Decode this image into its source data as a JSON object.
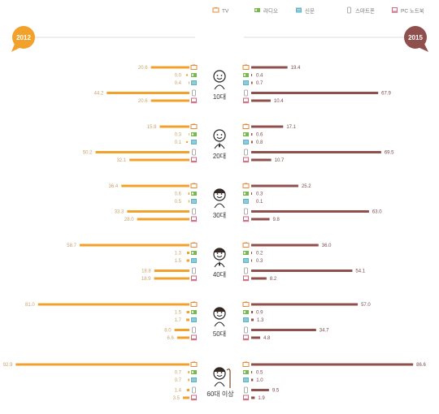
{
  "colors": {
    "left_bar": "#f2a22b",
    "right_bar": "#8f4f4c",
    "tv": "#e58a3a",
    "radio": "#79b84f",
    "newspaper": "#5db4c8",
    "smartphone": "#d6a73c",
    "pc": "#c95b72"
  },
  "legend": [
    {
      "label": "TV",
      "icon": "tv-icon",
      "color": "#e58a3a"
    },
    {
      "label": "라디오",
      "icon": "radio-icon",
      "color": "#79b84f"
    },
    {
      "label": "신문",
      "icon": "newspaper-icon",
      "color": "#5db4c8"
    },
    {
      "label": "스마트폰",
      "icon": "smartphone-icon",
      "color": "#d6a73c"
    },
    {
      "label": "PC 노트북",
      "icon": "pc-icon",
      "color": "#c95b72"
    }
  ],
  "chart_data": {
    "type": "bar",
    "left_label": "2012",
    "right_label": "2015",
    "media": [
      "TV",
      "라디오",
      "신문",
      "스마트폰",
      "PC 노트북"
    ],
    "groups": [
      {
        "age": "10대",
        "left": [
          20.6,
          0.0,
          0.4,
          44.2,
          20.6
        ],
        "right": [
          19.4,
          0.4,
          0.7,
          67.9,
          10.4
        ]
      },
      {
        "age": "20대",
        "left": [
          15.9,
          0.3,
          0.1,
          50.2,
          32.1
        ],
        "right": [
          17.1,
          0.6,
          0.8,
          69.5,
          10.7
        ]
      },
      {
        "age": "30대",
        "left": [
          36.4,
          0.6,
          0.5,
          33.3,
          28.0
        ],
        "right": [
          25.2,
          0.3,
          0.1,
          63.0,
          9.8
        ]
      },
      {
        "age": "40대",
        "left": [
          58.7,
          1.3,
          1.5,
          18.8,
          18.9
        ],
        "right": [
          36.0,
          0.2,
          0.3,
          54.1,
          8.2
        ]
      },
      {
        "age": "50대",
        "left": [
          81.0,
          1.5,
          1.7,
          8.0,
          6.6
        ],
        "right": [
          57.0,
          0.9,
          1.3,
          34.7,
          4.8
        ]
      },
      {
        "age": "60대 이상",
        "left": [
          92.9,
          0.7,
          0.7,
          1.4,
          3.5
        ],
        "right": [
          86.6,
          0.5,
          1.0,
          9.5,
          1.9
        ]
      }
    ]
  }
}
